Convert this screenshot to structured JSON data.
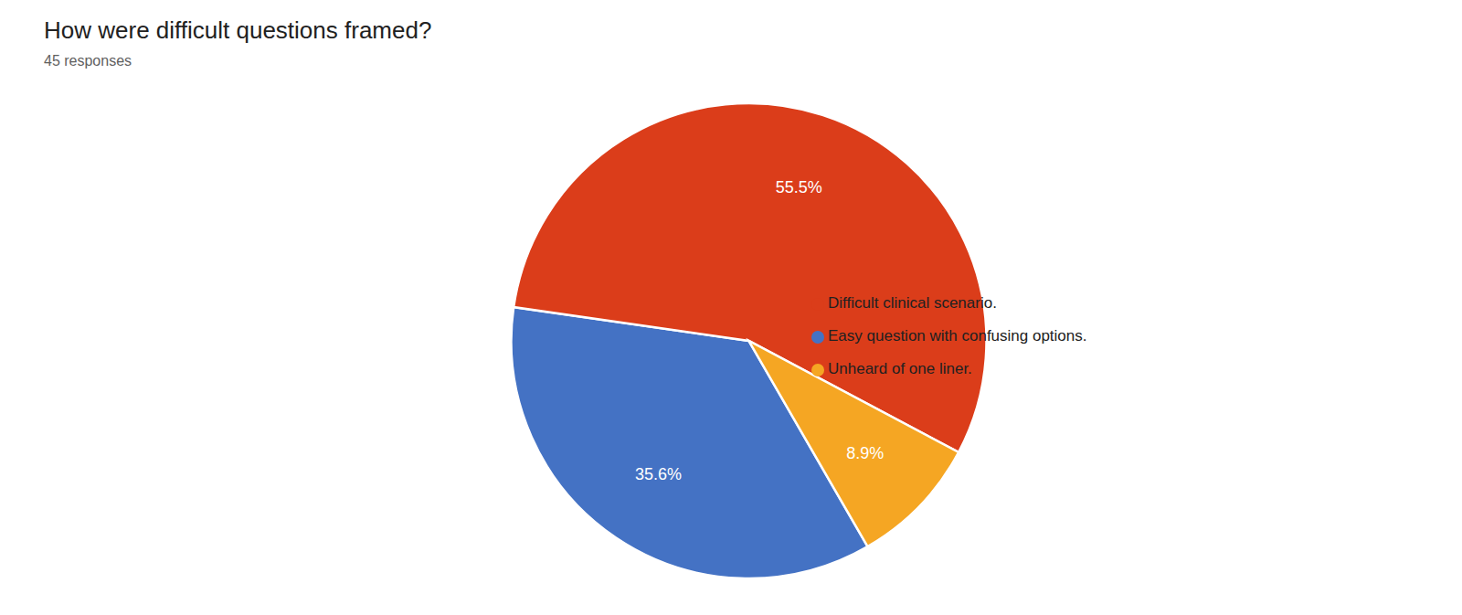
{
  "chart_data": {
    "type": "pie",
    "title": "How were difficult questions framed?",
    "subtitle": "45 responses",
    "categories": [
      "Easy question with confusing options.",
      "Difficult clinical scenario.",
      "Unheard of one liner."
    ],
    "values": [
      35.6,
      55.5,
      8.9
    ],
    "value_labels": [
      "35.6%",
      "55.5%",
      "8.9%"
    ],
    "colors": [
      "#4472c4",
      "#db3d1a",
      "#f5a623"
    ],
    "data_labels": true,
    "legend": "right"
  }
}
